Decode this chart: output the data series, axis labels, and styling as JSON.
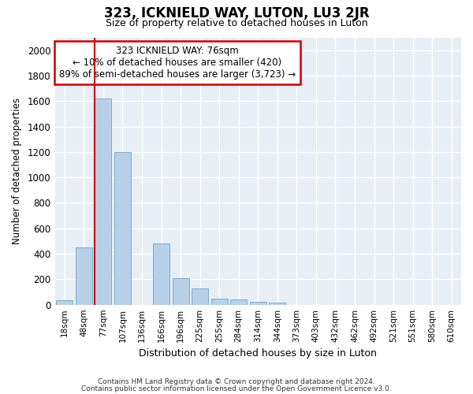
{
  "title": "323, ICKNIELD WAY, LUTON, LU3 2JR",
  "subtitle": "Size of property relative to detached houses in Luton",
  "xlabel": "Distribution of detached houses by size in Luton",
  "ylabel": "Number of detached properties",
  "bar_labels": [
    "18sqm",
    "48sqm",
    "77sqm",
    "107sqm",
    "136sqm",
    "166sqm",
    "196sqm",
    "225sqm",
    "255sqm",
    "284sqm",
    "314sqm",
    "344sqm",
    "373sqm",
    "403sqm",
    "432sqm",
    "462sqm",
    "492sqm",
    "521sqm",
    "551sqm",
    "580sqm",
    "610sqm"
  ],
  "bar_values": [
    35,
    450,
    1620,
    1200,
    0,
    480,
    210,
    125,
    50,
    40,
    25,
    15,
    0,
    0,
    0,
    0,
    0,
    0,
    0,
    0,
    0
  ],
  "bar_color": "#b8cfe8",
  "bar_edge_color": "#7aadd4",
  "property_line_index": 2,
  "annotation_line1": "323 ICKNIELD WAY: 76sqm",
  "annotation_line2": "← 10% of detached houses are smaller (420)",
  "annotation_line3": "89% of semi-detached houses are larger (3,723) →",
  "annotation_box_color": "#ffffff",
  "annotation_box_edge_color": "#cc0000",
  "vline_color": "#cc0000",
  "ylim": [
    0,
    2100
  ],
  "yticks": [
    0,
    200,
    400,
    600,
    800,
    1000,
    1200,
    1400,
    1600,
    1800,
    2000
  ],
  "plot_bg_color": "#e8eef5",
  "fig_bg_color": "#ffffff",
  "grid_color": "#ffffff",
  "footer_line1": "Contains HM Land Registry data © Crown copyright and database right 2024.",
  "footer_line2": "Contains public sector information licensed under the Open Government Licence v3.0."
}
